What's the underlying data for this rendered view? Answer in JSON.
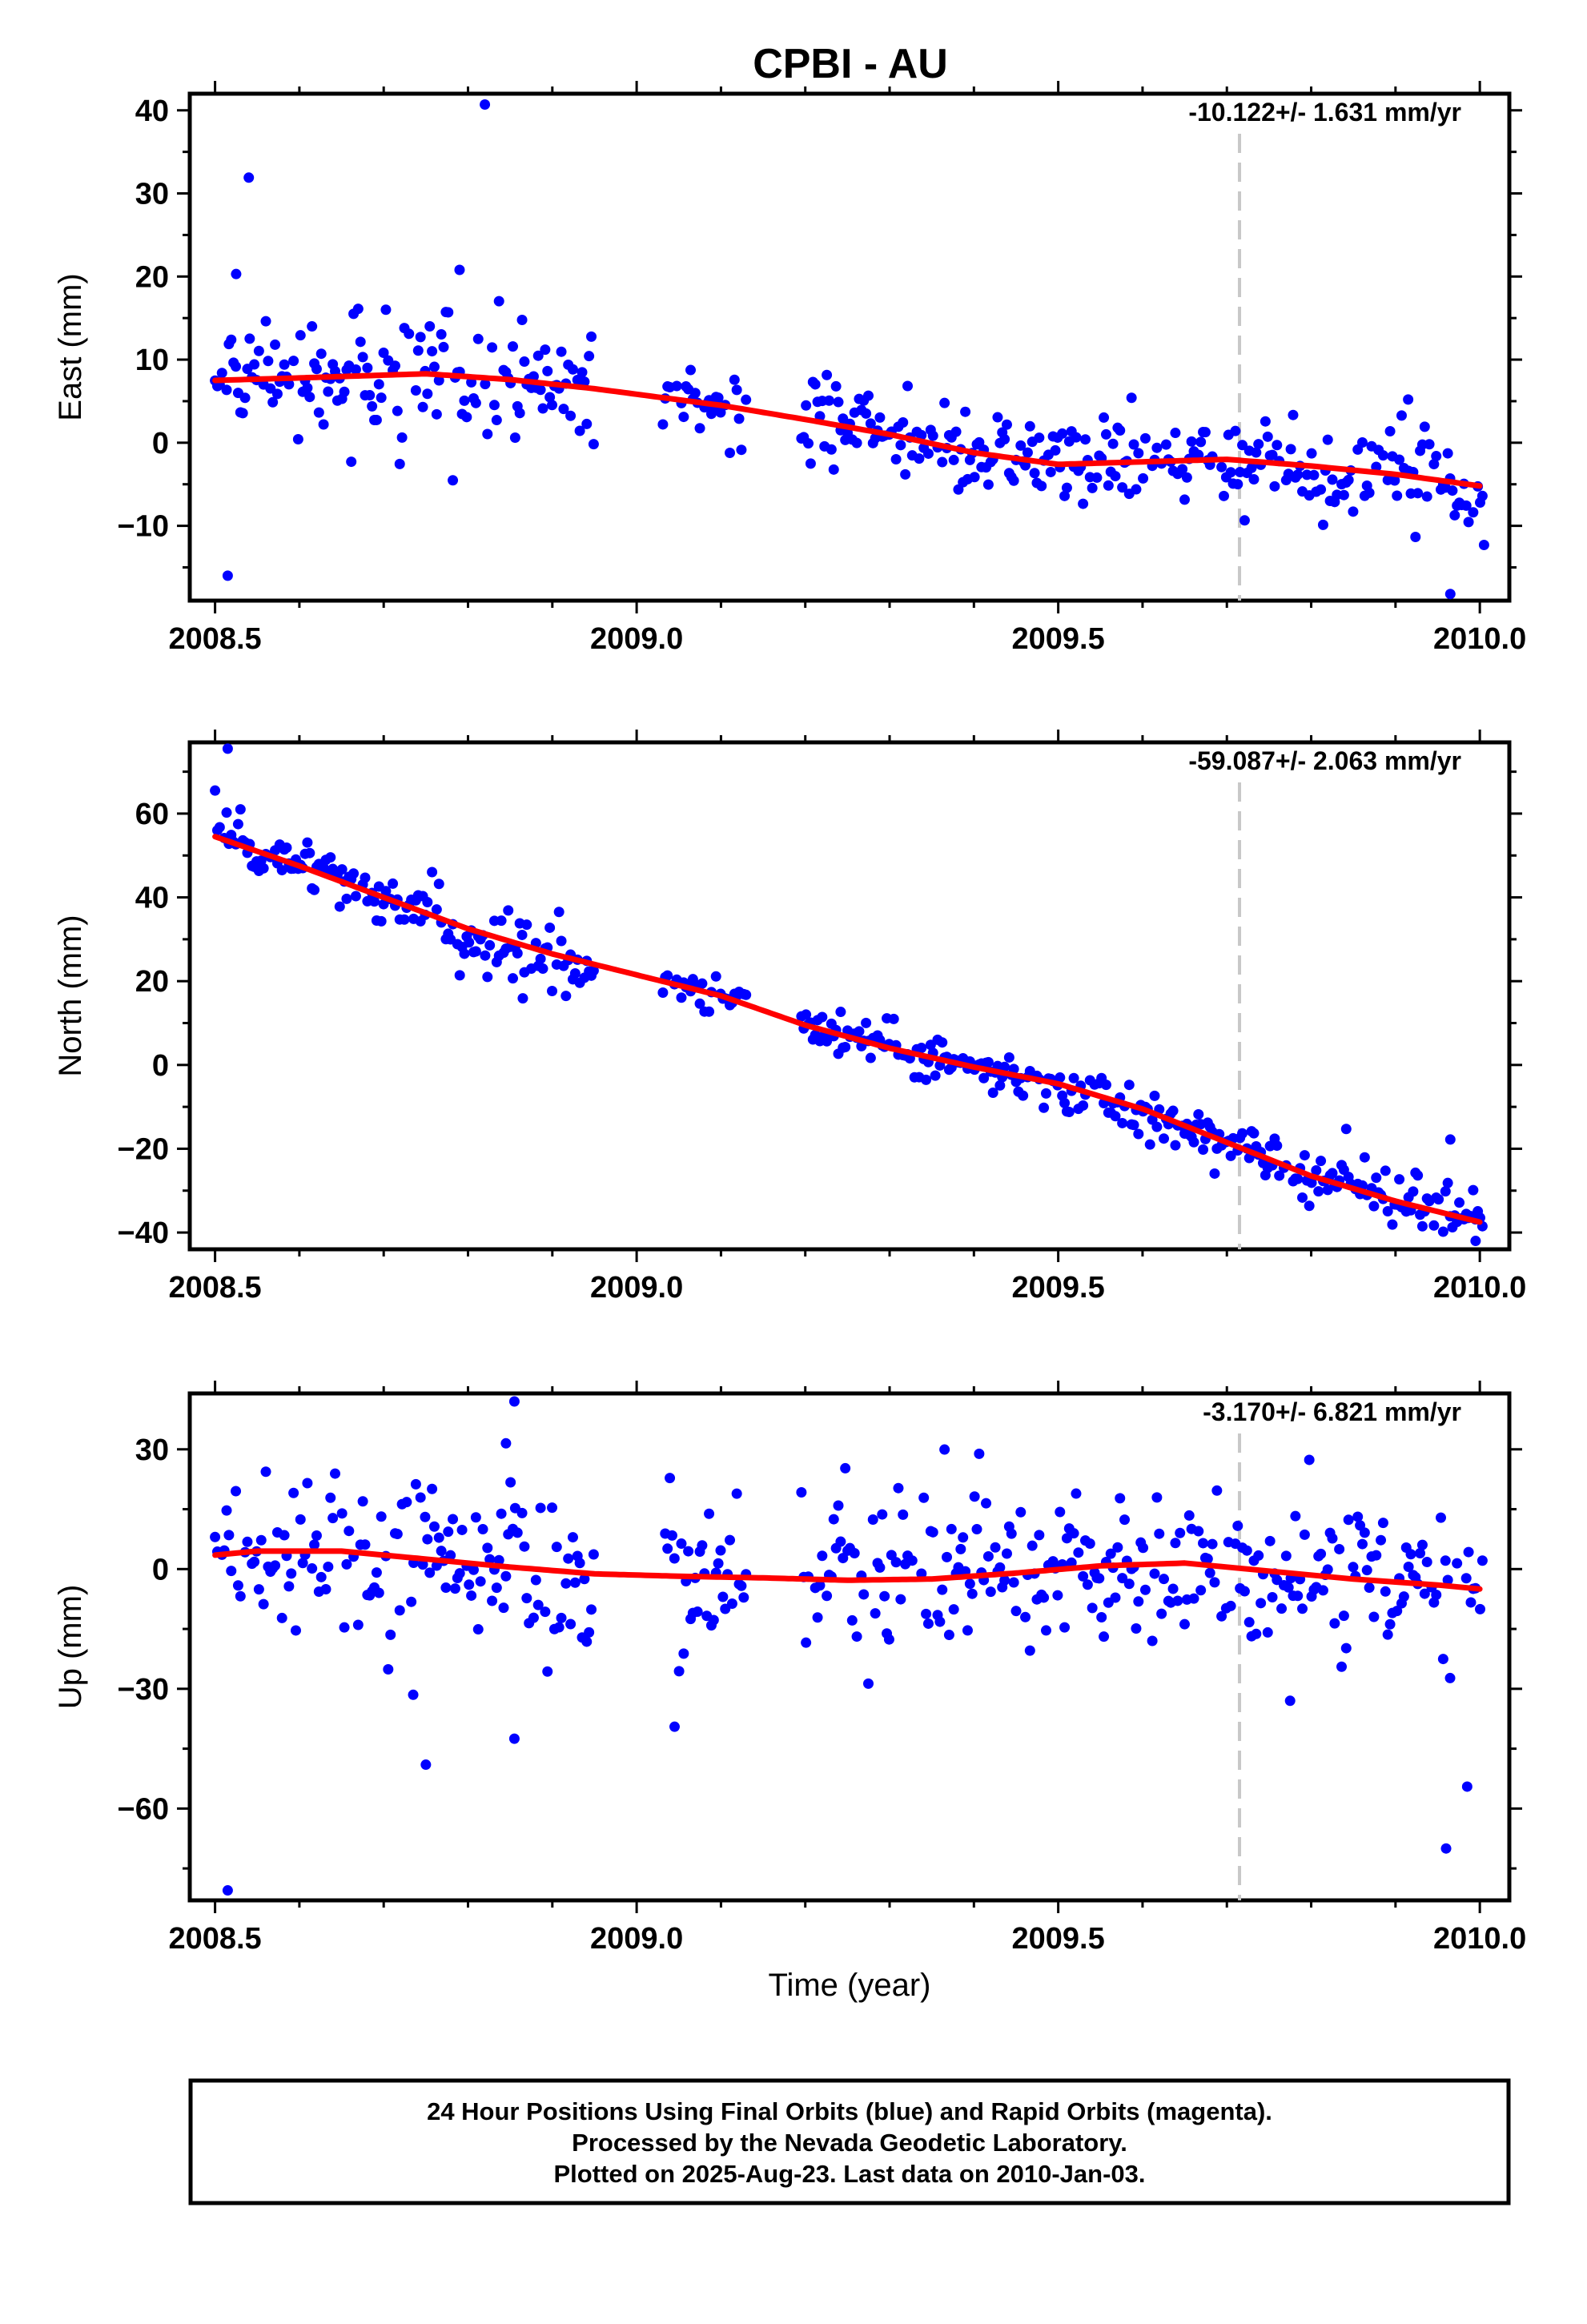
{
  "title": "CPBI - AU",
  "footer": {
    "lines": [
      "24 Hour Positions Using Final Orbits (blue) and Rapid Orbits (magenta).",
      "Processed by the Nevada Geodetic Laboratory.",
      "Plotted on 2025-Aug-23. Last data on 2010-Jan-03."
    ]
  },
  "colors": {
    "points": "#0000ff",
    "trend": "#ff0000",
    "marker_line": "#c8c8c8",
    "frame": "#000000"
  },
  "marker_year": 2009.715,
  "chart_data": [
    {
      "type": "scatter",
      "component": "East",
      "ylabel": "East (mm)",
      "xlabel": "",
      "rate_label": "-10.122+/- 1.631 mm/yr",
      "xlim": [
        2008.47,
        2010.035
      ],
      "ylim": [
        -19,
        42
      ],
      "xticks": [
        2008.5,
        2009.0,
        2009.5,
        2010.0
      ],
      "xtick_labels": [
        "2008.5",
        "2009.0",
        "2009.5",
        "2010.0"
      ],
      "yticks": [
        -10,
        0,
        10,
        20,
        30,
        40
      ],
      "ytick_labels": [
        "−10",
        "0",
        "10",
        "20",
        "30",
        "40"
      ],
      "trend": {
        "x": [
          2008.5,
          2008.6,
          2008.75,
          2008.85,
          2008.95,
          2009.1,
          2009.2,
          2009.3,
          2009.4,
          2009.5,
          2009.6,
          2009.7,
          2009.8,
          2009.9,
          2010.0
        ],
        "y": [
          7.5,
          7.8,
          8.3,
          7.6,
          6.5,
          4.5,
          2.8,
          1.0,
          -1.2,
          -2.6,
          -2.3,
          -2.0,
          -2.8,
          -3.8,
          -5.2
        ]
      },
      "spikes": [
        [
          2008.515,
          -16
        ],
        [
          2008.525,
          20.3
        ],
        [
          2008.54,
          31.9
        ],
        [
          2008.79,
          20.8
        ],
        [
          2008.82,
          40.7
        ],
        [
          2009.965,
          -18.2
        ],
        [
          2010.005,
          -12.3
        ],
        [
          2009.915,
          5.2
        ]
      ]
    },
    {
      "type": "scatter",
      "component": "North",
      "ylabel": "North (mm)",
      "xlabel": "",
      "rate_label": "-59.087+/- 2.063 mm/yr",
      "xlim": [
        2008.47,
        2010.035
      ],
      "ylim": [
        -44,
        77
      ],
      "xticks": [
        2008.5,
        2009.0,
        2009.5,
        2010.0
      ],
      "xtick_labels": [
        "2008.5",
        "2009.0",
        "2009.5",
        "2010.0"
      ],
      "yticks": [
        -40,
        -20,
        0,
        20,
        40,
        60
      ],
      "ytick_labels": [
        "−40",
        "−20",
        "0",
        "20",
        "40",
        "60"
      ],
      "trend": {
        "x": [
          2008.5,
          2008.6,
          2008.7,
          2008.8,
          2008.9,
          2009.0,
          2009.1,
          2009.2,
          2009.3,
          2009.4,
          2009.5,
          2009.6,
          2009.7,
          2009.8,
          2009.9,
          2010.0
        ],
        "y": [
          54.5,
          47.5,
          40.0,
          32.5,
          26.5,
          21.5,
          16.5,
          9.5,
          4.0,
          -0.5,
          -4.5,
          -10.5,
          -18.5,
          -26.5,
          -32.5,
          -37.5
        ]
      },
      "spikes": [
        [
          2008.515,
          75.5
        ],
        [
          2008.5,
          65.5
        ],
        [
          2008.865,
          15.9
        ],
        [
          2009.965,
          -17.8
        ],
        [
          2009.995,
          -42.0
        ]
      ]
    },
    {
      "type": "scatter",
      "component": "Up",
      "ylabel": "Up (mm)",
      "xlabel": "Time (year)",
      "rate_label": "-3.170+/- 6.821 mm/yr",
      "xlim": [
        2008.47,
        2010.035
      ],
      "ylim": [
        -83,
        44
      ],
      "xticks": [
        2008.5,
        2009.0,
        2009.5,
        2010.0
      ],
      "xtick_labels": [
        "2008.5",
        "2009.0",
        "2009.5",
        "2010.0"
      ],
      "yticks": [
        -60,
        -30,
        0,
        30
      ],
      "ytick_labels": [
        "−60",
        "−30",
        "0",
        "30"
      ],
      "trend": {
        "x": [
          2008.5,
          2008.55,
          2008.65,
          2008.75,
          2008.85,
          2008.95,
          2009.05,
          2009.15,
          2009.25,
          2009.35,
          2009.45,
          2009.55,
          2009.65,
          2009.75,
          2009.85,
          2009.95,
          2010.0
        ],
        "y": [
          3.5,
          4.5,
          4.5,
          2.5,
          0.5,
          -1.2,
          -1.8,
          -2.2,
          -2.8,
          -2.5,
          -1.0,
          0.8,
          1.5,
          -0.5,
          -2.5,
          -4.0,
          -5.0
        ]
      },
      "spikes": [
        [
          2008.515,
          -80.5
        ],
        [
          2008.75,
          -49
        ],
        [
          2008.855,
          42
        ],
        [
          2008.855,
          -42.5
        ],
        [
          2008.845,
          31.5
        ],
        [
          2009.045,
          -39.5
        ],
        [
          2009.96,
          -70
        ],
        [
          2009.985,
          -54.5
        ],
        [
          2008.735,
          -31.5
        ],
        [
          2009.775,
          -33
        ]
      ]
    }
  ]
}
